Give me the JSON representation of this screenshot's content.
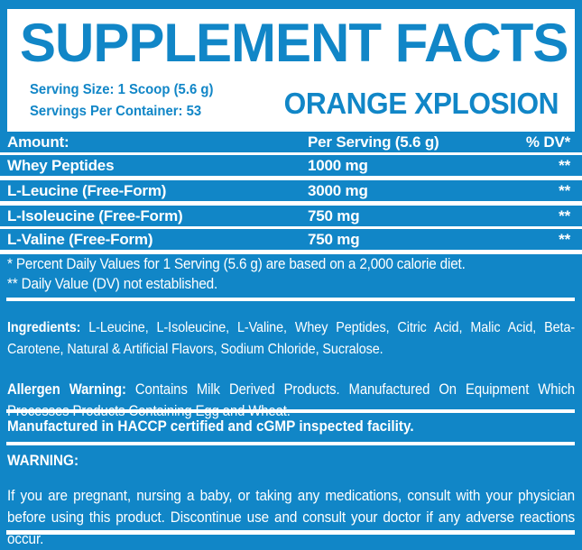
{
  "colors": {
    "brand_blue": "#1186C7",
    "text_on_blue": "#FFFFFF"
  },
  "header": {
    "title": "SUPPLEMENT FACTS",
    "serving_size": "Serving Size: 1 Scoop (5.6 g)",
    "servings_per_container": "Servings Per Container: 53",
    "flavor": "ORANGE XPLOSION"
  },
  "table": {
    "columns": [
      "Amount:",
      "Per Serving (5.6 g)",
      "% DV*"
    ],
    "rows": [
      {
        "name": "Whey Peptides",
        "amount": "1000 mg",
        "dv": "**"
      },
      {
        "name": "L-Leucine (Free-Form)",
        "amount": "3000 mg",
        "dv": "**"
      },
      {
        "name": "L-Isoleucine (Free-Form)",
        "amount": "750 mg",
        "dv": "**"
      },
      {
        "name": "L-Valine (Free-Form)",
        "amount": "750 mg",
        "dv": "**"
      }
    ]
  },
  "footnotes": {
    "daily_values": "* Percent Daily Values for 1 Serving (5.6 g) are based on a 2,000 calorie diet.",
    "not_established": "** Daily Value (DV) not established."
  },
  "ingredients": {
    "label": "Ingredients: ",
    "text": "L-Leucine, L-Isoleucine, L-Valine, Whey Peptides, Citric Acid, Malic Acid, Beta-Carotene, Natural & Artificial Flavors, Sodium Chloride, Sucralose."
  },
  "allergen": {
    "label": "Allergen Warning: ",
    "text": "Contains Milk Derived Products. Manufactured On Equipment Which Processes Products Containing Egg and Wheat."
  },
  "manufacture_note": "Manufactured in HACCP certified and cGMP inspected facility.",
  "warning": {
    "label": "WARNING:",
    "text": "If you are pregnant, nursing a baby, or taking any medications, consult with your physician before using this product. Discontinue use and consult your doctor if any adverse reactions occur."
  }
}
